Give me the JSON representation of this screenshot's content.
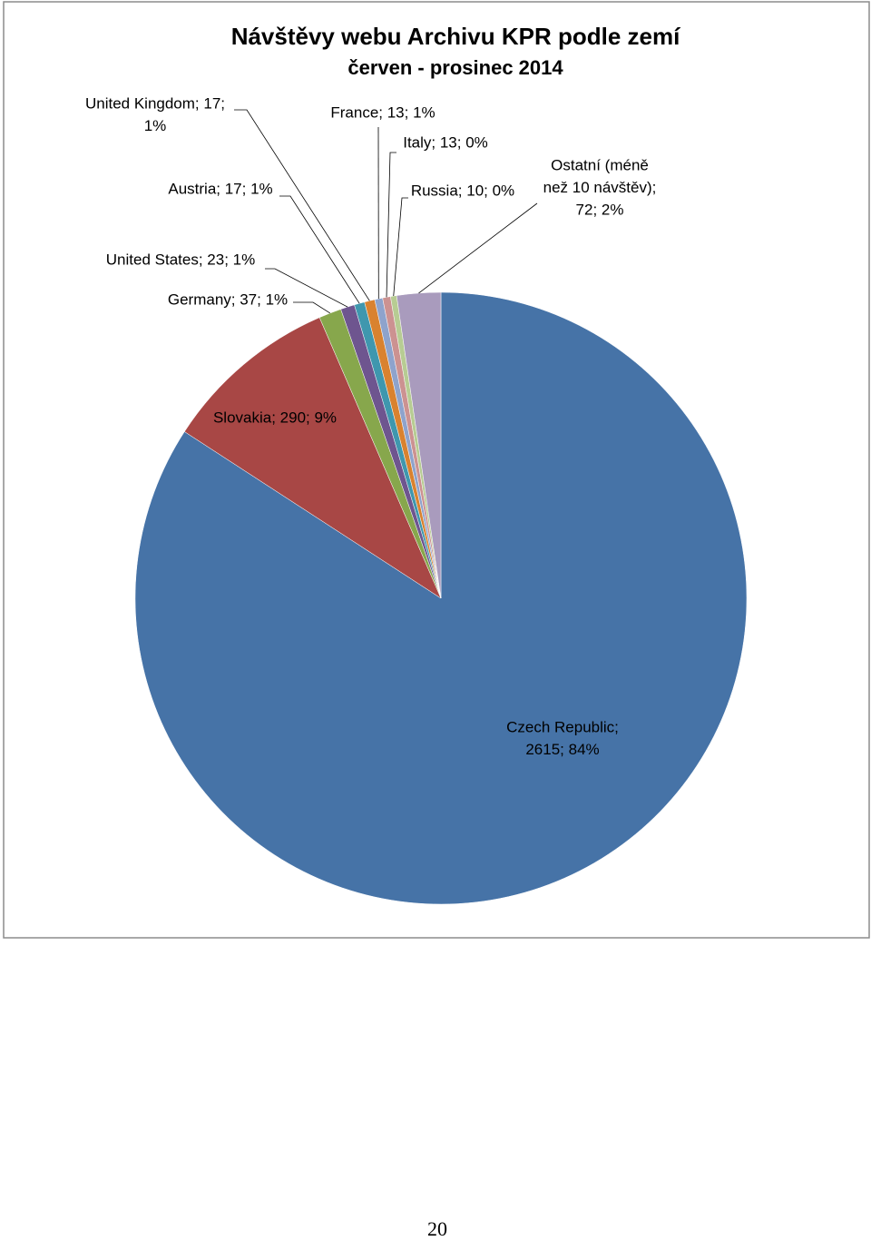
{
  "chart_data": {
    "type": "pie",
    "title": "Návštěvy webu Archivu KPR podle zemí",
    "subtitle": "červen - prosinec 2014",
    "values": [
      2615,
      290,
      37,
      23,
      17,
      17,
      13,
      13,
      10,
      72
    ],
    "value_labels": [
      [
        "Czech Republic;",
        "2615; 84%"
      ],
      [
        "Slovakia; 290; 9%"
      ],
      [
        "Germany; 37; 1%"
      ],
      [
        "United States; 23; 1%"
      ],
      [
        "Austria; 17; 1%"
      ],
      [
        "United Kingdom; 17;",
        "1%"
      ],
      [
        "France; 13; 1%"
      ],
      [
        "Italy; 13; 0%"
      ],
      [
        "Russia; 10; 0%"
      ],
      [
        "Ostatní (méně",
        "než 10 návštěv);",
        "72; 2%"
      ]
    ],
    "colors": [
      "#4673a7",
      "#a84745",
      "#87a74c",
      "#6e558f",
      "#3f97ae",
      "#d9822f",
      "#8ea3cc",
      "#cc9291",
      "#b7cc93",
      "#a99bbd"
    ]
  },
  "page_number": "20"
}
